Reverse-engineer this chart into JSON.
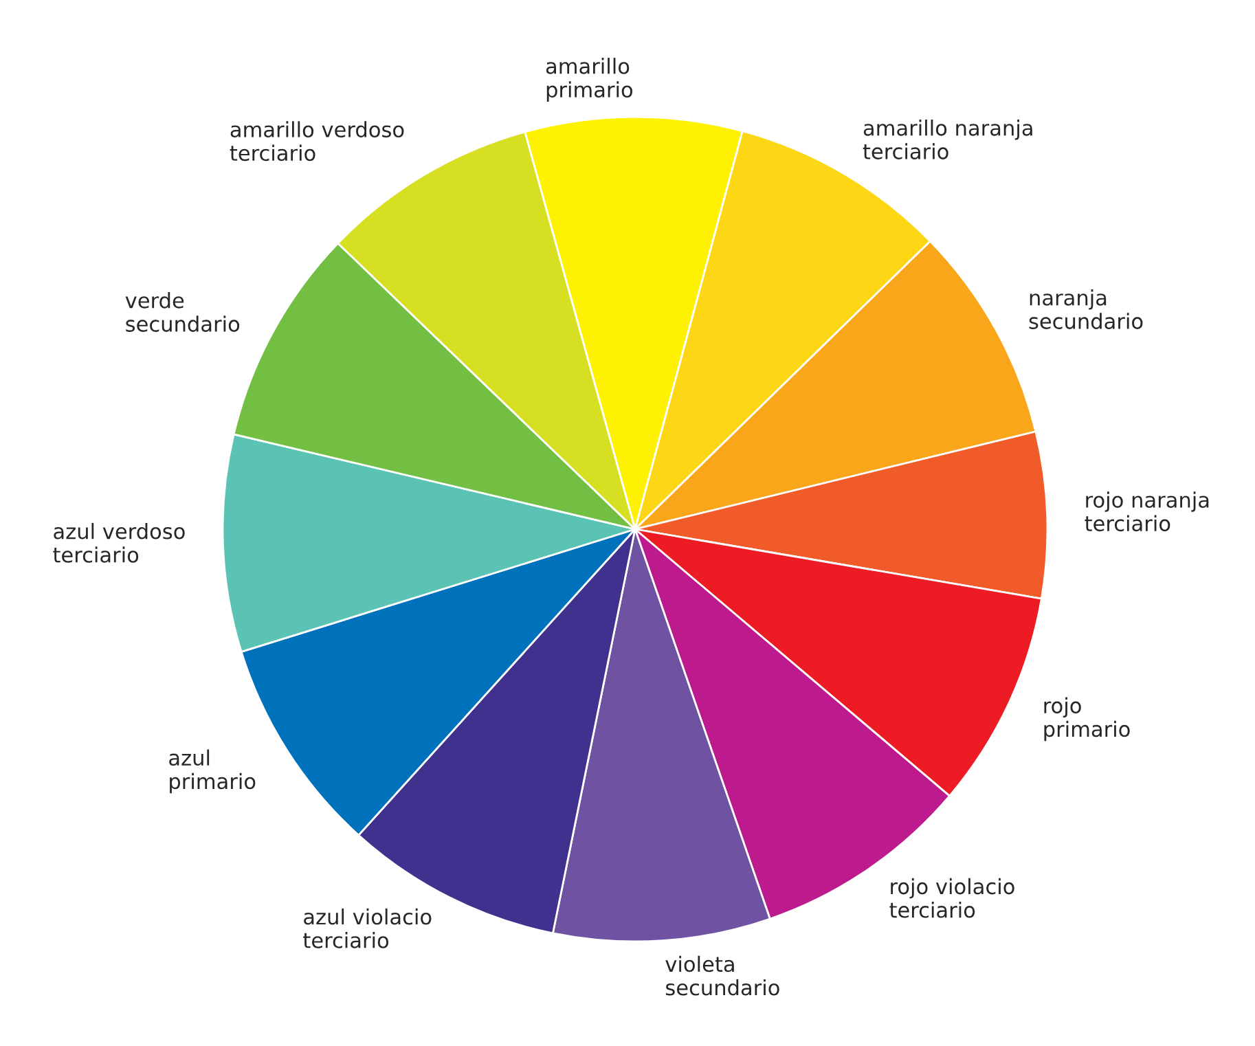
{
  "chart_data": {
    "type": "pie",
    "categories": [
      "amarillo\nprimario",
      "amarillo naranja\nterciario",
      "naranja\nsecundario",
      "rojo naranja\nterciario",
      "rojo\nprimario",
      "rojo violacio\nterciario",
      "violeta\nsecundario",
      "azul violacio\nterciario",
      "azul\nprimario",
      "azul verdoso\nterciario",
      "verde\nsecundario",
      "amarillo verdoso\nterciario"
    ],
    "values": [
      8.5,
      8.5,
      8.5,
      6.5,
      8.5,
      8.5,
      8.5,
      8.5,
      8.5,
      8.5,
      8.5,
      8.5
    ],
    "colors": [
      "#fff200",
      "#fdd716",
      "#faa61a",
      "#f15a29",
      "#ed1c24",
      "#bd1a8d",
      "#6f52a2",
      "#41318f",
      "#0072bc",
      "#5bc3b3",
      "#72bf44",
      "#d7df23"
    ],
    "legend": false
  }
}
